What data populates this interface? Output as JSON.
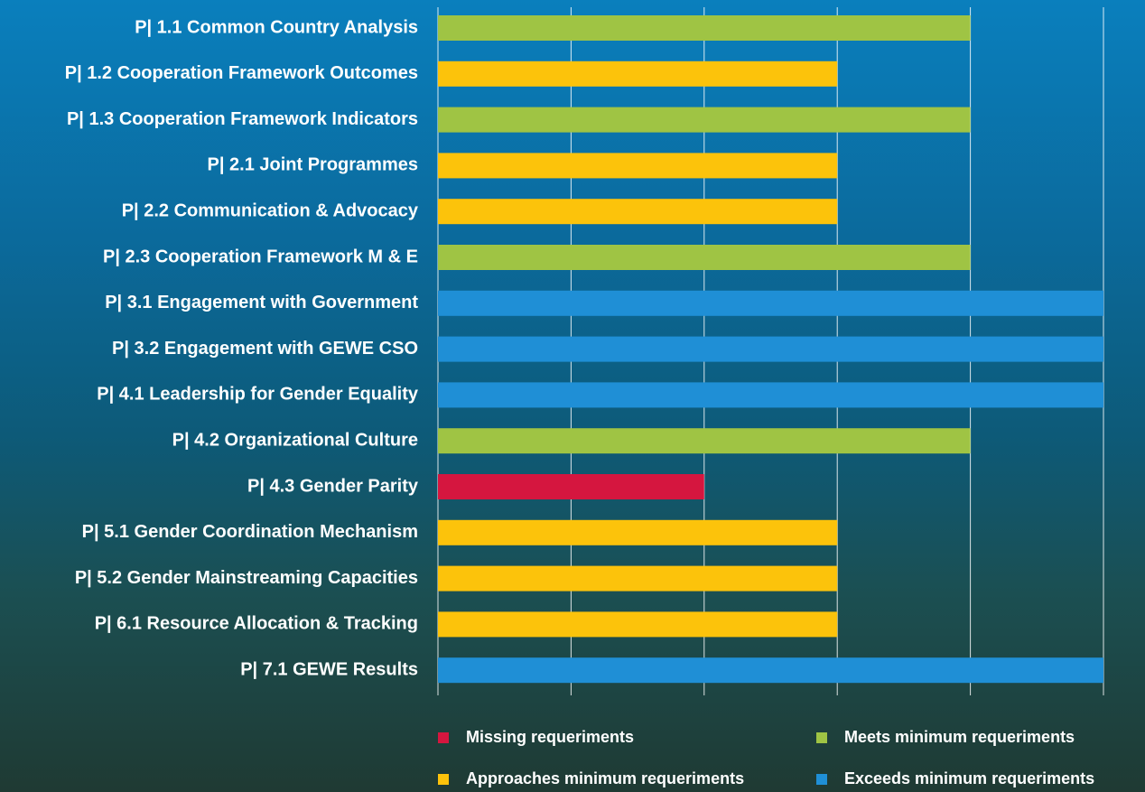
{
  "chart_data": {
    "type": "bar",
    "orientation": "horizontal",
    "categories": [
      "P| 1.1 Common Country Analysis",
      "P| 1.2 Cooperation Framework Outcomes",
      "P| 1.3 Cooperation Framework Indicators",
      "P| 2.1 Joint Programmes",
      "P| 2.2 Communication & Advocacy",
      "P| 2.3 Cooperation Framework M & E",
      "P| 3.1 Engagement with Government",
      "P| 3.2 Engagement with GEWE CSO",
      "P| 4.1 Leadership for Gender Equality",
      "P| 4.2 Organizational Culture",
      "P| 4.3 Gender Parity",
      "P| 5.1 Gender Coordination Mechanism",
      "P| 5.2 Gender Mainstreaming Capacities",
      "P| 6.1 Resource Allocation & Tracking",
      "P| 7.1 GEWE Results"
    ],
    "series": [
      {
        "name": "Missing requeriments",
        "color": "#d5163f",
        "values": [
          null,
          null,
          null,
          null,
          null,
          null,
          null,
          null,
          null,
          null,
          2,
          null,
          null,
          null,
          null
        ]
      },
      {
        "name": "Approaches minimum requeriments",
        "color": "#fcc30b",
        "values": [
          null,
          3,
          null,
          3,
          3,
          null,
          null,
          null,
          null,
          null,
          null,
          3,
          3,
          3,
          null
        ]
      },
      {
        "name": "Meets minimum requeriments",
        "color": "#9fc444",
        "values": [
          4,
          null,
          4,
          null,
          null,
          4,
          null,
          null,
          null,
          4,
          null,
          null,
          null,
          null,
          null
        ]
      },
      {
        "name": "Exceeds minimum requeriments",
        "color": "#1f8fd6",
        "values": [
          null,
          null,
          null,
          null,
          null,
          null,
          5,
          5,
          5,
          null,
          null,
          null,
          null,
          null,
          5
        ]
      }
    ],
    "xlim": [
      0,
      5
    ],
    "xticks": [
      0,
      1,
      2,
      3,
      4,
      5
    ],
    "grid": true
  }
}
